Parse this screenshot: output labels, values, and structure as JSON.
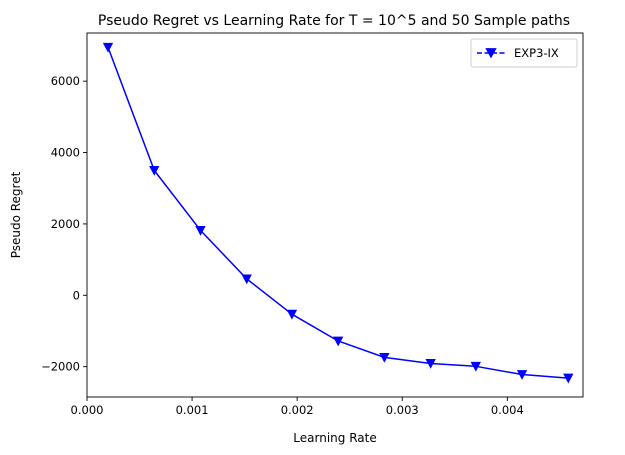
{
  "chart_data": {
    "type": "line",
    "title": "Pseudo Regret vs Learning Rate for T = 10^5 and 50 Sample paths",
    "xlabel": "Learning Rate",
    "ylabel": "Pseudo Regret",
    "xlim": [
      0.0,
      0.00472
    ],
    "ylim": [
      -2850,
      7350
    ],
    "xticks": [
      0.0,
      0.001,
      0.002,
      0.003,
      0.004
    ],
    "xtick_labels": [
      "0.000",
      "0.001",
      "0.002",
      "0.003",
      "0.004"
    ],
    "yticks": [
      -2000,
      0,
      2000,
      4000,
      6000
    ],
    "ytick_labels": [
      "−2000",
      "0",
      "2000",
      "4000",
      "6000"
    ],
    "grid": false,
    "legend_position": "top-right",
    "series": [
      {
        "name": "EXP3-IX",
        "color": "#0000ff",
        "marker": "triangle-down",
        "line_style": "dashed",
        "x": [
          0.0002,
          0.00064,
          0.00108,
          0.00152,
          0.00195,
          0.00239,
          0.00283,
          0.00327,
          0.0037,
          0.00414,
          0.00458
        ],
        "y": [
          6950,
          3500,
          1820,
          460,
          -530,
          -1280,
          -1740,
          -1910,
          -1990,
          -2220,
          -2320
        ]
      }
    ]
  }
}
